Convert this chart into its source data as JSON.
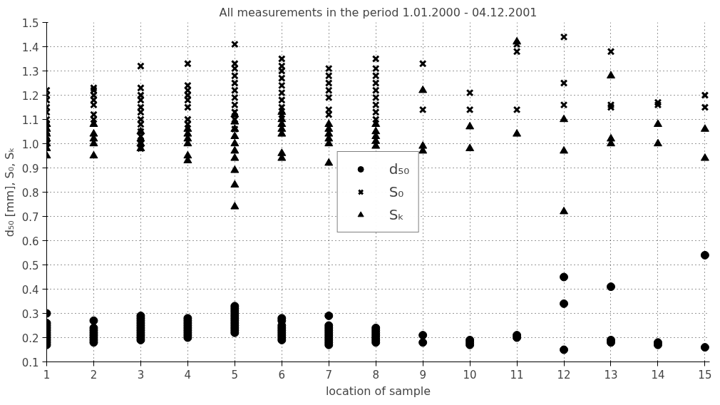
{
  "chart_data": {
    "type": "scatter",
    "title": "All measurements in the period 1.01.2000 - 04.12.2001",
    "xlabel": "location of sample",
    "ylabel": "d₅₀ [mm], S₀, Sₖ",
    "xlim": [
      1,
      15.1
    ],
    "xticks": [
      1,
      2,
      3,
      4,
      5,
      6,
      7,
      8,
      9,
      10,
      11,
      12,
      13,
      14,
      15
    ],
    "ylim": [
      0.1,
      1.5
    ],
    "yticks": [
      0.1,
      0.2,
      0.3,
      0.4,
      0.5,
      0.6,
      0.7,
      0.8,
      0.9,
      {
        "value": 1,
        "label": "1.0"
      },
      1.1,
      1.2,
      1.3,
      1.4,
      1.5
    ],
    "grid": true,
    "legend": "center",
    "series": [
      {
        "name": "d₅₀",
        "marker": "circle",
        "color": "#000000",
        "x": [
          1,
          1,
          1,
          1,
          1,
          1,
          1,
          1,
          1,
          1,
          1,
          2,
          2,
          2,
          2,
          2,
          2,
          2,
          2,
          3,
          3,
          3,
          3,
          3,
          3,
          3,
          3,
          3,
          3,
          3,
          4,
          4,
          4,
          4,
          4,
          4,
          4,
          4,
          4,
          5,
          5,
          5,
          5,
          5,
          5,
          5,
          5,
          5,
          5,
          5,
          5,
          6,
          6,
          6,
          6,
          6,
          6,
          6,
          6,
          6,
          7,
          7,
          7,
          7,
          7,
          7,
          7,
          7,
          7,
          7,
          8,
          8,
          8,
          8,
          8,
          8,
          8,
          9,
          9,
          10,
          10,
          10,
          11,
          11,
          12,
          12,
          12,
          13,
          13,
          13,
          14,
          14,
          15,
          15
        ],
        "values": [
          0.17,
          0.18,
          0.19,
          0.2,
          0.21,
          0.22,
          0.23,
          0.24,
          0.25,
          0.26,
          0.3,
          0.18,
          0.19,
          0.2,
          0.21,
          0.22,
          0.23,
          0.24,
          0.27,
          0.19,
          0.2,
          0.21,
          0.22,
          0.23,
          0.24,
          0.25,
          0.26,
          0.27,
          0.28,
          0.29,
          0.2,
          0.21,
          0.22,
          0.23,
          0.24,
          0.25,
          0.26,
          0.27,
          0.28,
          0.22,
          0.23,
          0.24,
          0.25,
          0.26,
          0.27,
          0.28,
          0.29,
          0.3,
          0.31,
          0.32,
          0.33,
          0.19,
          0.2,
          0.21,
          0.22,
          0.23,
          0.24,
          0.25,
          0.27,
          0.28,
          0.17,
          0.18,
          0.19,
          0.2,
          0.21,
          0.22,
          0.23,
          0.24,
          0.25,
          0.29,
          0.18,
          0.19,
          0.2,
          0.21,
          0.22,
          0.23,
          0.24,
          0.18,
          0.21,
          0.17,
          0.18,
          0.19,
          0.2,
          0.21,
          0.15,
          0.34,
          0.45,
          0.18,
          0.19,
          0.41,
          0.17,
          0.18,
          0.16,
          0.54
        ]
      },
      {
        "name": "S₀",
        "marker": "cross",
        "color": "#000000",
        "x": [
          1,
          1,
          1,
          1,
          1,
          1,
          1,
          1,
          1,
          1,
          2,
          2,
          2,
          2,
          2,
          2,
          2,
          3,
          3,
          3,
          3,
          3,
          3,
          3,
          3,
          3,
          3,
          3,
          3,
          4,
          4,
          4,
          4,
          4,
          4,
          4,
          4,
          5,
          5,
          5,
          5,
          5,
          5,
          5,
          5,
          5,
          5,
          5,
          6,
          6,
          6,
          6,
          6,
          6,
          6,
          6,
          6,
          7,
          7,
          7,
          7,
          7,
          7,
          7,
          8,
          8,
          8,
          8,
          8,
          8,
          8,
          8,
          8,
          9,
          9,
          10,
          10,
          11,
          11,
          11,
          12,
          12,
          12,
          13,
          13,
          13,
          14,
          14,
          15,
          15
        ],
        "values": [
          1.0,
          1.03,
          1.05,
          1.08,
          1.1,
          1.13,
          1.15,
          1.18,
          1.2,
          1.22,
          1.1,
          1.12,
          1.16,
          1.18,
          1.2,
          1.22,
          1.23,
          0.98,
          1.0,
          1.03,
          1.05,
          1.08,
          1.1,
          1.13,
          1.15,
          1.18,
          1.2,
          1.23,
          1.32,
          1.08,
          1.1,
          1.15,
          1.18,
          1.2,
          1.22,
          1.24,
          1.33,
          1.06,
          1.1,
          1.13,
          1.16,
          1.19,
          1.22,
          1.25,
          1.28,
          1.31,
          1.33,
          1.41,
          1.12,
          1.15,
          1.18,
          1.21,
          1.24,
          1.27,
          1.3,
          1.32,
          1.35,
          1.12,
          1.14,
          1.19,
          1.22,
          1.25,
          1.28,
          1.31,
          1.1,
          1.13,
          1.16,
          1.19,
          1.22,
          1.25,
          1.28,
          1.31,
          1.35,
          1.14,
          1.33,
          1.14,
          1.21,
          1.14,
          1.38,
          1.41,
          1.16,
          1.25,
          1.44,
          1.15,
          1.16,
          1.38,
          1.16,
          1.17,
          1.15,
          1.2
        ]
      },
      {
        "name": "Sₖ",
        "marker": "triangle",
        "color": "#000000",
        "x": [
          1,
          1,
          1,
          1,
          1,
          1,
          1,
          2,
          2,
          2,
          2,
          2,
          3,
          3,
          3,
          3,
          4,
          4,
          4,
          4,
          4,
          4,
          5,
          5,
          5,
          5,
          5,
          5,
          5,
          5,
          5,
          5,
          6,
          6,
          6,
          6,
          6,
          6,
          6,
          7,
          7,
          7,
          7,
          7,
          7,
          8,
          8,
          8,
          8,
          8,
          9,
          9,
          9,
          10,
          10,
          11,
          11,
          12,
          12,
          12,
          13,
          13,
          13,
          14,
          14,
          15,
          15
        ],
        "values": [
          0.95,
          0.98,
          1.0,
          1.02,
          1.04,
          1.06,
          1.08,
          0.95,
          1.0,
          1.02,
          1.04,
          1.08,
          0.98,
          1.0,
          1.02,
          1.05,
          0.93,
          0.95,
          1.0,
          1.02,
          1.04,
          1.06,
          0.74,
          0.83,
          0.89,
          0.94,
          0.97,
          1.0,
          1.03,
          1.06,
          1.09,
          1.12,
          0.94,
          0.96,
          1.04,
          1.06,
          1.08,
          1.1,
          1.13,
          0.92,
          1.0,
          1.02,
          1.04,
          1.06,
          1.08,
          0.99,
          1.01,
          1.03,
          1.05,
          1.08,
          0.97,
          0.99,
          1.22,
          0.98,
          1.07,
          1.04,
          1.42,
          0.72,
          0.97,
          1.1,
          1.0,
          1.02,
          1.28,
          1.0,
          1.08,
          0.94,
          1.06
        ]
      }
    ]
  }
}
